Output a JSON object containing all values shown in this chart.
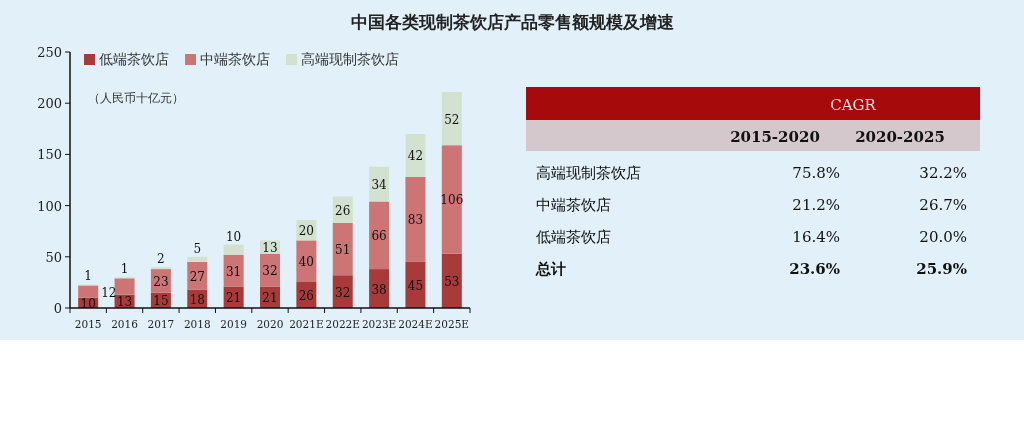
{
  "chart_data": [
    {
      "type": "bar",
      "title": "中国各类现制茶饮店产品零售额规模及增速",
      "ylabel": "（人民币十亿元）",
      "stacked": true,
      "legend": "top left",
      "grid": false,
      "categories": [
        "2015",
        "2016",
        "2017",
        "2018",
        "2019",
        "2020",
        "2021E",
        "2022E",
        "2023E",
        "2024E",
        "2025E"
      ],
      "ylim": [
        0,
        250
      ],
      "yticks": [
        0,
        50,
        100,
        150,
        200,
        250
      ],
      "series": [
        {
          "name": "低端茶饮店",
          "color": "#a83a3a",
          "values": [
            10,
            13,
            15,
            18,
            21,
            21,
            26,
            32,
            38,
            45,
            53
          ],
          "value_labels": [
            "10",
            "13",
            "15",
            "18",
            "21",
            "21",
            "26",
            "32",
            "38",
            "45",
            "53"
          ]
        },
        {
          "name": "中端茶饮店",
          "color": "#cd7474",
          "values": [
            12,
            16,
            23,
            27,
            31,
            32,
            40,
            51,
            66,
            83,
            106
          ],
          "value_labels": [
            "12",
            null,
            "23",
            "27",
            "31",
            "32",
            "40",
            "51",
            "66",
            "83",
            "106"
          ]
        },
        {
          "name": "高端现制茶饮店",
          "color": "#d3e2d0",
          "values": [
            1,
            1,
            2,
            5,
            10,
            13,
            20,
            26,
            34,
            42,
            52
          ],
          "value_labels": [
            "1",
            "1",
            "2",
            "5",
            "10",
            "13",
            "20",
            "26",
            "34",
            "42",
            "52"
          ]
        }
      ]
    },
    {
      "type": "other",
      "annotations": [
        "CAGR",
        "2015-2020",
        "2020-2025",
        "高端现制茶饮店",
        "75.8%",
        "32.2%",
        "中端茶饮店",
        "21.2%",
        "26.7%",
        "低端茶饮店",
        "16.4%",
        "20.0%",
        "总计",
        "23.6%",
        "25.9%"
      ]
    }
  ]
}
